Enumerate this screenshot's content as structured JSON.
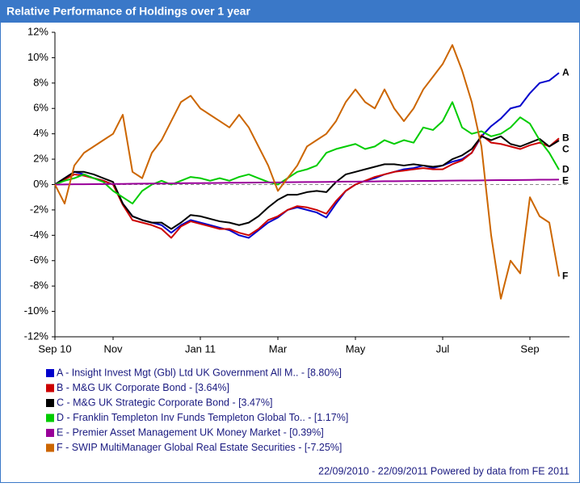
{
  "chart_data": {
    "type": "line",
    "title": "Relative Performance of Holdings over 1 year",
    "footer": "22/09/2010 - 22/09/2011 Powered by data from FE 2011",
    "categories": [
      "Sep 10",
      null,
      null,
      null,
      null,
      null,
      "Nov",
      null,
      null,
      null,
      null,
      null,
      null,
      null,
      null,
      "Jan 11",
      null,
      null,
      null,
      null,
      null,
      null,
      null,
      "Mar",
      null,
      null,
      null,
      null,
      null,
      null,
      null,
      "May",
      null,
      null,
      null,
      null,
      null,
      null,
      null,
      null,
      "Jul",
      null,
      null,
      null,
      null,
      null,
      null,
      null,
      null,
      "Sep",
      null,
      null,
      null
    ],
    "ylim": [
      -12,
      12
    ],
    "yticks": [
      {
        "value": 12,
        "label": "12%"
      },
      {
        "value": 10,
        "label": "10%"
      },
      {
        "value": 8,
        "label": "8%"
      },
      {
        "value": 6,
        "label": "6%"
      },
      {
        "value": 4,
        "label": "4%"
      },
      {
        "value": 2,
        "label": "2%"
      },
      {
        "value": 0,
        "label": "0%"
      },
      {
        "value": -2,
        "label": "-2%"
      },
      {
        "value": -4,
        "label": "-4%"
      },
      {
        "value": -6,
        "label": "-6%"
      },
      {
        "value": -8,
        "label": "-8%"
      },
      {
        "value": -10,
        "label": "-10%"
      },
      {
        "value": -12,
        "label": "-12%"
      }
    ],
    "grid": false,
    "baseline": 0,
    "series": [
      {
        "name": "A - Insight Invest Mgt (Gbl) Ltd UK Government All M.. - [8.80%]",
        "end_label": "A",
        "color": "#0000cc",
        "values": [
          0,
          0.5,
          1.0,
          0.8,
          0.5,
          0.3,
          0,
          -1.5,
          -2.5,
          -2.8,
          -3,
          -3.2,
          -3.8,
          -3.2,
          -2.8,
          -3,
          -3.2,
          -3.4,
          -3.6,
          -4,
          -4.2,
          -3.6,
          -3,
          -2.6,
          -2,
          -1.8,
          -2,
          -2.2,
          -2.6,
          -1.5,
          -0.5,
          0,
          0.3,
          0.5,
          0.8,
          1.0,
          1.2,
          1.3,
          1.5,
          1.3,
          1.5,
          1.8,
          2.0,
          2.5,
          3.8,
          4.6,
          5.2,
          6.0,
          6.2,
          7.2,
          8.0,
          8.2,
          8.8
        ]
      },
      {
        "name": "B - M&G UK Corporate Bond - [3.64%]",
        "end_label": "B",
        "color": "#cc0000",
        "values": [
          0,
          0.4,
          0.8,
          0.7,
          0.5,
          0.3,
          0,
          -1.6,
          -2.8,
          -3,
          -3.2,
          -3.5,
          -4.2,
          -3.3,
          -2.9,
          -3.1,
          -3.3,
          -3.5,
          -3.5,
          -3.8,
          -4,
          -3.5,
          -2.8,
          -2.5,
          -2,
          -1.7,
          -1.8,
          -2,
          -2.3,
          -1.3,
          -0.5,
          0,
          0.3,
          0.6,
          0.8,
          1,
          1.1,
          1.2,
          1.3,
          1.2,
          1.2,
          1.6,
          1.9,
          2.5,
          3.9,
          3.3,
          3.2,
          3.0,
          2.8,
          3.1,
          3.3,
          3.0,
          3.64
        ]
      },
      {
        "name": "C - M&G UK Strategic Corporate Bond - [3.47%]",
        "end_label": "C",
        "color": "#000000",
        "values": [
          0,
          0.5,
          1,
          1,
          0.8,
          0.5,
          0.2,
          -1.5,
          -2.5,
          -2.8,
          -3,
          -3,
          -3.5,
          -3,
          -2.4,
          -2.5,
          -2.7,
          -2.9,
          -3,
          -3.2,
          -3,
          -2.5,
          -1.8,
          -1.2,
          -0.8,
          -0.8,
          -0.6,
          -0.5,
          -0.6,
          0.2,
          0.8,
          1,
          1.2,
          1.4,
          1.6,
          1.6,
          1.5,
          1.6,
          1.5,
          1.4,
          1.5,
          2,
          2.3,
          2.8,
          3.8,
          3.5,
          3.8,
          3.2,
          3.0,
          3.3,
          3.6,
          3.0,
          3.47
        ]
      },
      {
        "name": "D - Franklin Templeton Inv Funds Templeton Global To.. - [1.17%]",
        "end_label": "D",
        "color": "#00cc00",
        "values": [
          0,
          0.3,
          0.5,
          0.8,
          0.5,
          0.2,
          -0.5,
          -1,
          -1.5,
          -0.5,
          0,
          0.3,
          0,
          0.3,
          0.6,
          0.5,
          0.3,
          0.5,
          0.3,
          0.6,
          0.8,
          0.5,
          0.2,
          0,
          0.5,
          1,
          1.2,
          1.5,
          2.5,
          2.8,
          3,
          3.2,
          2.8,
          3,
          3.5,
          3.2,
          3.5,
          3.3,
          4.5,
          4.3,
          5,
          6.5,
          4.5,
          4,
          4.2,
          3.8,
          4,
          4.5,
          5.3,
          4.8,
          3.5,
          2.5,
          1.17
        ]
      },
      {
        "name": "E - Premier Asset Management UK Money Market - [0.39%]",
        "end_label": "E",
        "color": "#990099",
        "values": [
          0,
          0.01,
          0.02,
          0.02,
          0.03,
          0.04,
          0.05,
          0.05,
          0.06,
          0.07,
          0.08,
          0.08,
          0.09,
          0.1,
          0.11,
          0.11,
          0.12,
          0.13,
          0.14,
          0.14,
          0.15,
          0.16,
          0.17,
          0.17,
          0.18,
          0.19,
          0.2,
          0.2,
          0.21,
          0.22,
          0.23,
          0.23,
          0.24,
          0.25,
          0.26,
          0.26,
          0.27,
          0.28,
          0.29,
          0.29,
          0.3,
          0.31,
          0.32,
          0.32,
          0.33,
          0.34,
          0.35,
          0.35,
          0.36,
          0.37,
          0.38,
          0.38,
          0.39
        ]
      },
      {
        "name": "F - SWIP MultiManager Global Real Estate Securities - [-7.25%]",
        "end_label": "F",
        "color": "#cc6600",
        "values": [
          0,
          -1.5,
          1.5,
          2.5,
          3,
          3.5,
          4,
          5.5,
          1,
          0.5,
          2.5,
          3.5,
          5,
          6.5,
          7,
          6,
          5.5,
          5,
          4.5,
          5.5,
          4.5,
          3,
          1.5,
          -0.5,
          0.5,
          1.5,
          3,
          3.5,
          4,
          5,
          6.5,
          7.5,
          6.5,
          6,
          7.5,
          6,
          5,
          6,
          7.5,
          8.5,
          9.5,
          11,
          9,
          6.5,
          3,
          -4,
          -9,
          -6,
          -7,
          -1,
          -2.5,
          -3,
          -7.25
        ]
      }
    ]
  }
}
